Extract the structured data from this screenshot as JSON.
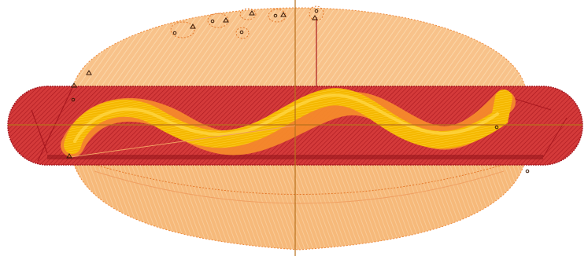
{
  "canvas": {
    "background": "#ffffff"
  },
  "colors": {
    "bun_fill": "#f8c28a",
    "bun_stroke": "#ee8a3c",
    "bun_hatch": "#fbd6a8",
    "sausage_fill": "#d43a3a",
    "sausage_dark": "#a9181f",
    "sausage_hatch": "#8e1218",
    "mustard": "#f5b800",
    "mustard_edge": "#ffcf33",
    "ketchup_orange": "#f58a2b",
    "guide_line": "#b8701c",
    "marker": "#8f3a12"
  },
  "design": {
    "title": "",
    "objects": [
      {
        "name": "hotdog-bun"
      },
      {
        "name": "sausage"
      },
      {
        "name": "mustard-squiggle"
      },
      {
        "name": "sesame-details"
      }
    ]
  }
}
